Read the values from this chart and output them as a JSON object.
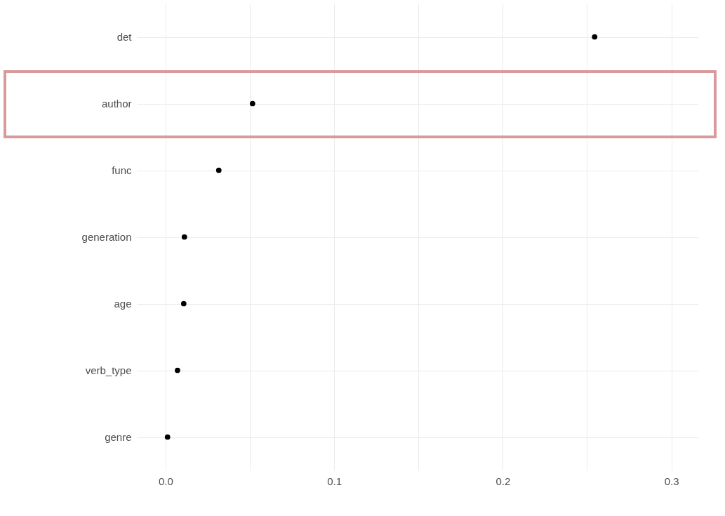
{
  "chart_data": {
    "type": "scatter",
    "categories": [
      "det",
      "author",
      "func",
      "generation",
      "age",
      "verb_type",
      "genre"
    ],
    "orientation": "horizontal",
    "series": [
      {
        "color": "#000000",
        "values": [
          0.2545,
          0.0516,
          0.0316,
          0.0112,
          0.0108,
          0.0071,
          0.0012
        ]
      }
    ],
    "xlim": [
      -0.017,
      0.316
    ],
    "xticks": [
      {
        "value": 0.0,
        "label": "0.0"
      },
      {
        "value": 0.05,
        "label": null
      },
      {
        "value": 0.1,
        "label": "0.1"
      },
      {
        "value": 0.15,
        "label": null
      },
      {
        "value": 0.2,
        "label": "0.2"
      },
      {
        "value": 0.25,
        "label": null
      },
      {
        "value": 0.3,
        "label": "0.3"
      }
    ],
    "grid": true
  }
}
